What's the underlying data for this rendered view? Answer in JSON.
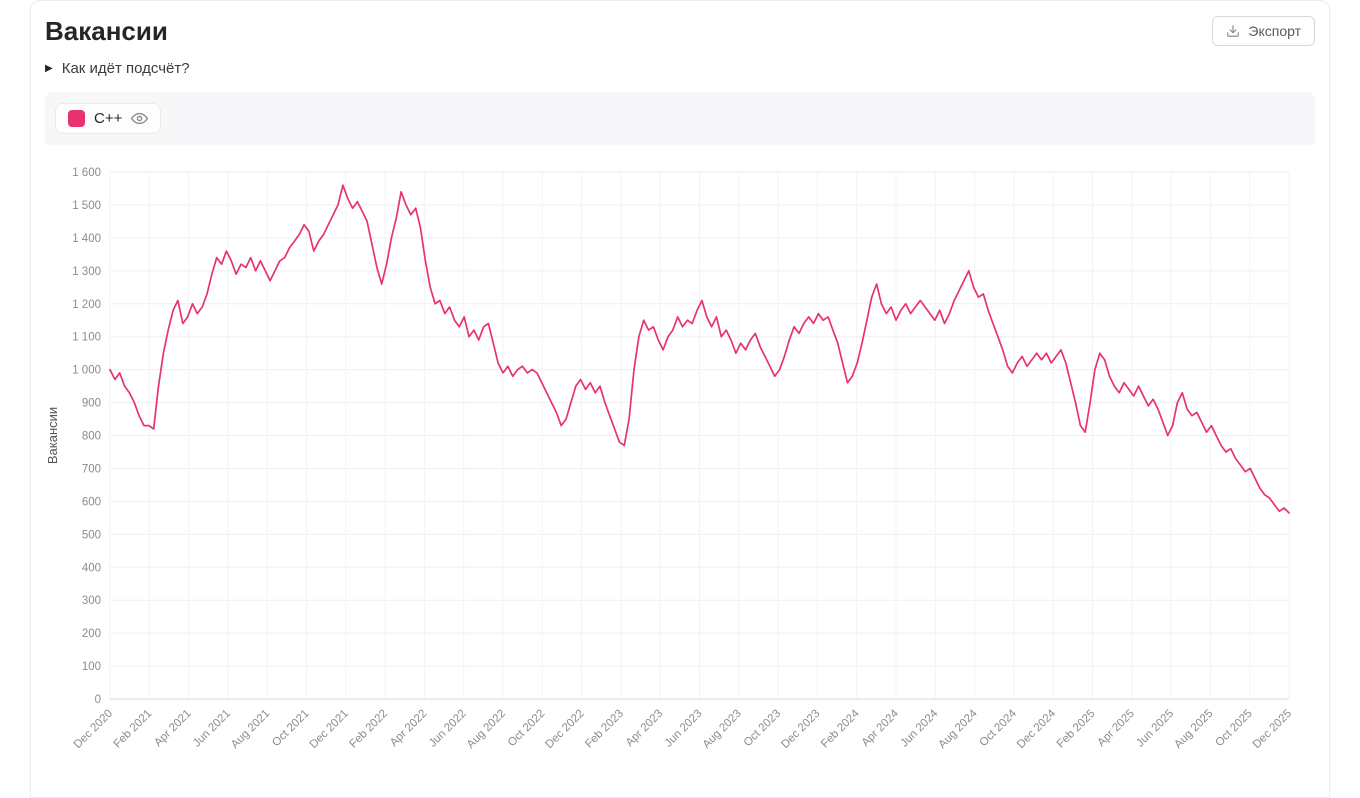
{
  "page": {
    "title": "Вакансии",
    "export_label": "Экспорт",
    "how_counted_summary": "Как идёт подсчёт?"
  },
  "legend": [
    {
      "label": "C++",
      "color": "#e7336e",
      "visible": true
    }
  ],
  "chart_data": {
    "type": "line",
    "title": "",
    "xlabel": "",
    "ylabel": "Вакансии",
    "ylim": [
      0,
      1600
    ],
    "grid": true,
    "legend_position": "top-left",
    "x_range": [
      "Dec 2020",
      "Dec 2025"
    ],
    "x_tick_labels": [
      "Dec 2020",
      "Feb 2021",
      "Apr 2021",
      "Jun 2021",
      "Aug 2021",
      "Oct 2021",
      "Dec 2021",
      "Feb 2022",
      "Apr 2022",
      "Jun 2022",
      "Aug 2022",
      "Oct 2022",
      "Dec 2022",
      "Feb 2023",
      "Apr 2023",
      "Jun 2023",
      "Aug 2023",
      "Oct 2023",
      "Dec 2023",
      "Feb 2024",
      "Apr 2024",
      "Jun 2024",
      "Aug 2024",
      "Oct 2024",
      "Dec 2024",
      "Feb 2025",
      "Apr 2025",
      "Jun 2025",
      "Aug 2025",
      "Oct 2025",
      "Dec 2025"
    ],
    "y_ticks": [
      0,
      100,
      200,
      300,
      400,
      500,
      600,
      700,
      800,
      900,
      1000,
      1100,
      1200,
      1300,
      1400,
      1500,
      1600
    ],
    "y_tick_labels": [
      "0",
      "100",
      "200",
      "300",
      "400",
      "500",
      "600",
      "700",
      "800",
      "900",
      "1 000",
      "1 100",
      "1 200",
      "1 300",
      "1 400",
      "1 500",
      "1 600"
    ],
    "sampling": "approx-weekly estimates read from plot",
    "series": [
      {
        "name": "C++",
        "color": "#e7336e",
        "values": [
          1000,
          970,
          990,
          950,
          930,
          900,
          860,
          830,
          830,
          820,
          950,
          1050,
          1120,
          1180,
          1210,
          1140,
          1160,
          1200,
          1170,
          1190,
          1230,
          1290,
          1340,
          1320,
          1360,
          1330,
          1290,
          1320,
          1310,
          1340,
          1300,
          1330,
          1300,
          1270,
          1300,
          1330,
          1340,
          1370,
          1390,
          1410,
          1440,
          1420,
          1360,
          1390,
          1410,
          1440,
          1470,
          1500,
          1560,
          1520,
          1490,
          1510,
          1480,
          1450,
          1380,
          1310,
          1260,
          1320,
          1400,
          1460,
          1540,
          1500,
          1470,
          1490,
          1430,
          1330,
          1250,
          1200,
          1210,
          1170,
          1190,
          1150,
          1130,
          1160,
          1100,
          1120,
          1090,
          1130,
          1140,
          1080,
          1020,
          990,
          1010,
          980,
          1000,
          1010,
          990,
          1000,
          990,
          960,
          930,
          900,
          870,
          830,
          850,
          900,
          950,
          970,
          940,
          960,
          930,
          950,
          900,
          860,
          820,
          780,
          770,
          850,
          1000,
          1100,
          1150,
          1120,
          1130,
          1090,
          1060,
          1100,
          1120,
          1160,
          1130,
          1150,
          1140,
          1180,
          1210,
          1160,
          1130,
          1160,
          1100,
          1120,
          1090,
          1050,
          1080,
          1060,
          1090,
          1110,
          1070,
          1040,
          1010,
          980,
          1000,
          1040,
          1090,
          1130,
          1110,
          1140,
          1160,
          1140,
          1170,
          1150,
          1160,
          1120,
          1080,
          1020,
          960,
          980,
          1020,
          1080,
          1150,
          1220,
          1260,
          1200,
          1170,
          1190,
          1150,
          1180,
          1200,
          1170,
          1190,
          1210,
          1190,
          1170,
          1150,
          1180,
          1140,
          1170,
          1210,
          1240,
          1270,
          1300,
          1250,
          1220,
          1230,
          1180,
          1140,
          1100,
          1060,
          1010,
          990,
          1020,
          1040,
          1010,
          1030,
          1050,
          1030,
          1050,
          1020,
          1040,
          1060,
          1020,
          960,
          900,
          830,
          810,
          900,
          1000,
          1050,
          1030,
          980,
          950,
          930,
          960,
          940,
          920,
          950,
          920,
          890,
          910,
          880,
          840,
          800,
          830,
          900,
          930,
          880,
          860,
          870,
          840,
          810,
          830,
          800,
          770,
          750,
          760,
          730,
          710,
          690,
          700,
          670,
          640,
          620,
          610,
          590,
          570,
          580,
          565
        ]
      }
    ]
  }
}
